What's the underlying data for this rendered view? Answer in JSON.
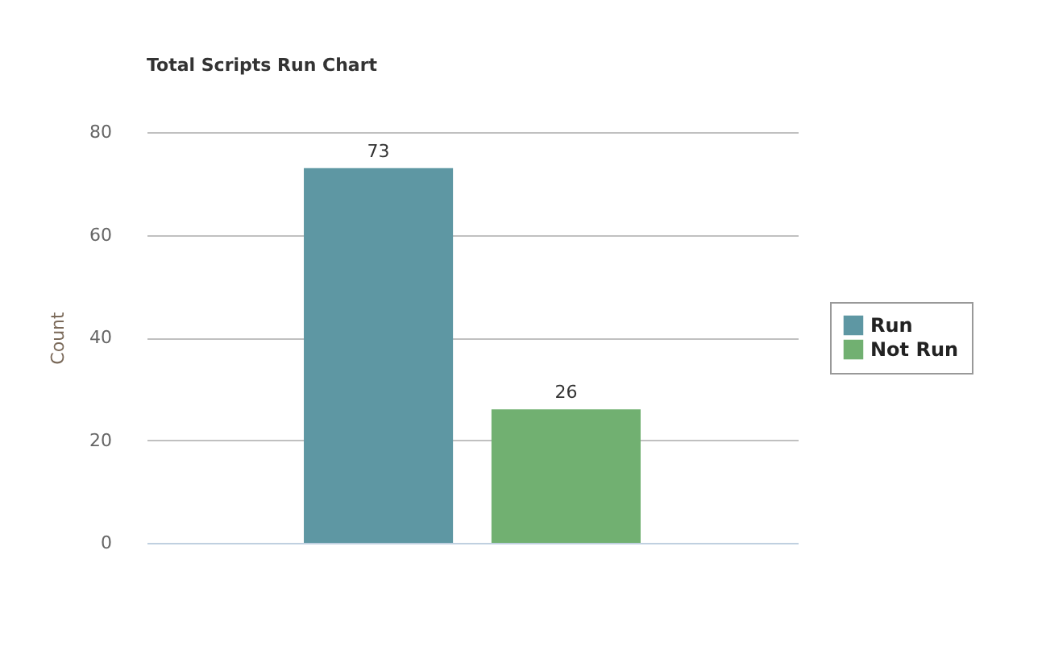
{
  "chart_data": {
    "type": "bar",
    "title": "Total Scripts Run Chart",
    "ylabel": "Count",
    "categories": [
      null
    ],
    "series": [
      {
        "name": "Run",
        "color": "#5e97a3",
        "values": [
          73
        ]
      },
      {
        "name": "Not Run",
        "color": "#71b071",
        "values": [
          26
        ]
      }
    ],
    "ylim": [
      0,
      80
    ],
    "yticks": [
      0,
      20,
      40,
      60,
      80
    ],
    "grid": "y",
    "legend": "right",
    "data_labels": true,
    "tick_labels": "y"
  }
}
